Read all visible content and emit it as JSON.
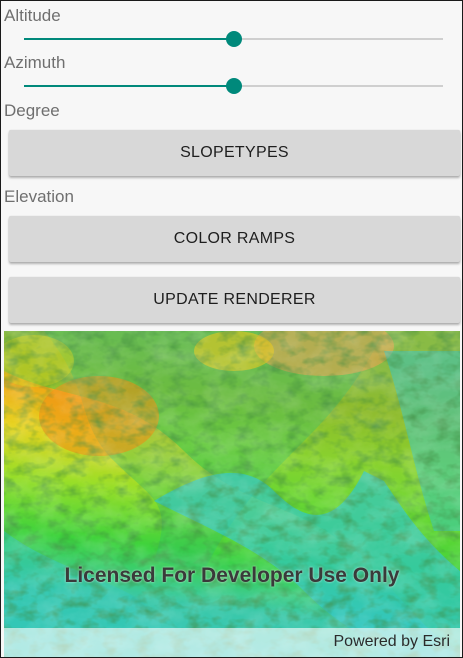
{
  "controls": {
    "altitude": {
      "label": "Altitude",
      "value_fraction": 0.5
    },
    "azimuth": {
      "label": "Azimuth",
      "value_fraction": 0.5
    },
    "slope_type_label": "Degree",
    "slope_types_button": "SLOPETYPES",
    "color_ramp_label": "Elevation",
    "color_ramps_button": "COLOR RAMPS",
    "update_button": "UPDATE RENDERER"
  },
  "map": {
    "watermark": "Licensed For Developer Use Only",
    "attribution": "Powered by Esri"
  },
  "colors": {
    "accent": "#00897b",
    "low_elevation": "#32c6c6",
    "mid_elevation": "#3cd23c",
    "high_elevation": "#f0b400"
  }
}
